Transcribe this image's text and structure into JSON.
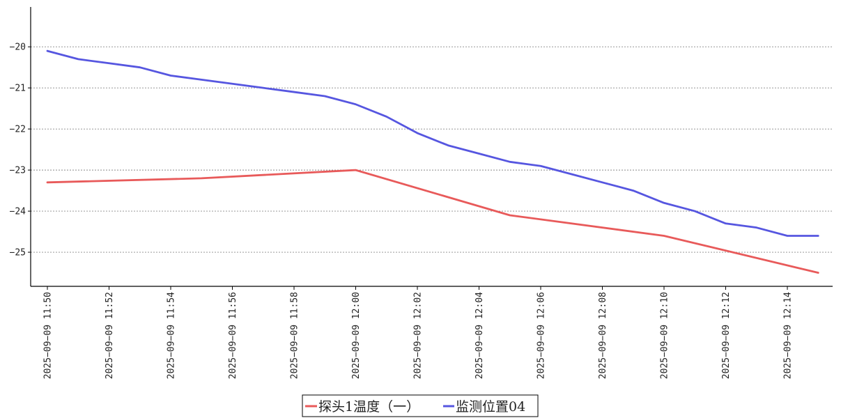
{
  "chart_data": {
    "type": "line",
    "title": "",
    "xlabel": "",
    "ylabel": "",
    "x": [
      "2025-09-09 11:50",
      "2025-09-09 11:51",
      "2025-09-09 11:52",
      "2025-09-09 11:53",
      "2025-09-09 11:54",
      "2025-09-09 11:55",
      "2025-09-09 11:56",
      "2025-09-09 11:57",
      "2025-09-09 11:58",
      "2025-09-09 11:59",
      "2025-09-09 12:00",
      "2025-09-09 12:01",
      "2025-09-09 12:02",
      "2025-09-09 12:03",
      "2025-09-09 12:04",
      "2025-09-09 12:05",
      "2025-09-09 12:06",
      "2025-09-09 12:07",
      "2025-09-09 12:08",
      "2025-09-09 12:09",
      "2025-09-09 12:10",
      "2025-09-09 12:11",
      "2025-09-09 12:12",
      "2025-09-09 12:13",
      "2025-09-09 12:14",
      "2025-09-09 12:15"
    ],
    "xticks": [
      "2025-09-09 11:50",
      "2025-09-09 11:52",
      "2025-09-09 11:54",
      "2025-09-09 11:56",
      "2025-09-09 11:58",
      "2025-09-09 12:00",
      "2025-09-09 12:02",
      "2025-09-09 12:04",
      "2025-09-09 12:06",
      "2025-09-09 12:08",
      "2025-09-09 12:10",
      "2025-09-09 12:12",
      "2025-09-09 12:14"
    ],
    "yticks": [
      -20,
      -21,
      -22,
      -23,
      -24,
      -25
    ],
    "ylim": [
      -25.83,
      -19.03
    ],
    "grid": "horizontal-dotted",
    "legend_position": "bottom-center",
    "series": [
      {
        "name": "探头1温度（一）",
        "color": "#e85a5a",
        "values": [
          -23.3,
          null,
          null,
          null,
          null,
          -23.2,
          null,
          null,
          null,
          null,
          -23.0,
          null,
          null,
          null,
          null,
          -24.1,
          null,
          null,
          null,
          null,
          -24.6,
          null,
          null,
          null,
          null,
          -25.5
        ]
      },
      {
        "name": "监测位置04",
        "color": "#5656e0",
        "values": [
          -20.1,
          -20.3,
          -20.4,
          -20.5,
          -20.7,
          -20.8,
          -20.9,
          -21.0,
          -21.1,
          -21.2,
          -21.4,
          -21.7,
          -22.1,
          -22.4,
          -22.6,
          -22.8,
          -22.9,
          -23.1,
          -23.3,
          -23.5,
          -23.8,
          -24.0,
          -24.3,
          -24.4,
          -24.6,
          -24.6
        ]
      }
    ]
  }
}
